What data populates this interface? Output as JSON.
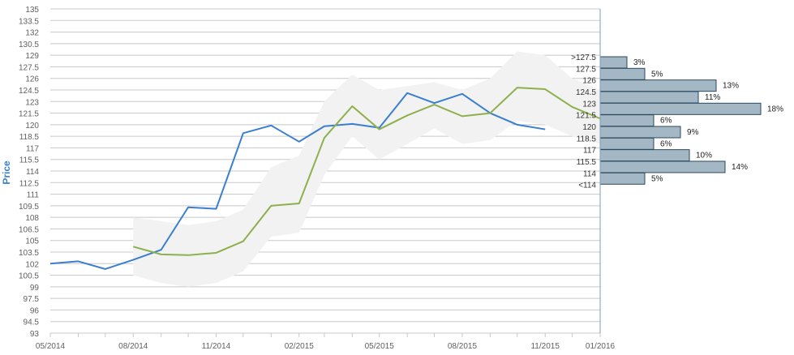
{
  "chart_data": {
    "type": "line",
    "ylabel": "Price",
    "ylim": [
      93,
      135
    ],
    "yticks": [
      "93",
      "94.5",
      "96",
      "97.5",
      "99",
      "100.5",
      "102",
      "103.5",
      "105",
      "106.5",
      "108",
      "109.5",
      "111",
      "112.5",
      "114",
      "115.5",
      "117",
      "118.5",
      "120",
      "121.5",
      "123",
      "124.5",
      "126",
      "127.5",
      "129",
      "130.5",
      "132",
      "133.5",
      "135"
    ],
    "xticks": [
      "05/2014",
      "08/2014",
      "11/2014",
      "02/2015",
      "05/2015",
      "08/2015",
      "11/2015",
      "01/2016"
    ],
    "x_tick_dates": [
      "2014-05-01",
      "2014-08-01",
      "2014-11-01",
      "2015-02-01",
      "2015-05-01",
      "2015-08-01",
      "2015-11-01",
      "2016-01-01"
    ],
    "x_range": [
      "2014-05-01",
      "2016-01-01"
    ],
    "grid": true,
    "colors": {
      "actual": "#3a7fcf",
      "forecast": "#8db04d",
      "band": "#f2f2f2",
      "hist_fill": "#a3b7c4",
      "hist_stroke": "#2b4a5e",
      "axis": "#7d9fb5"
    },
    "series": [
      {
        "values": [
          [
            "2014-05-01",
            102.0
          ],
          [
            "2014-06-01",
            102.3
          ],
          [
            "2014-07-01",
            101.3
          ],
          [
            "2014-08-01",
            102.5
          ],
          [
            "2014-09-01",
            103.8
          ],
          [
            "2014-10-01",
            109.3
          ],
          [
            "2014-11-01",
            109.1
          ],
          [
            "2014-12-01",
            118.9
          ],
          [
            "2015-01-01",
            119.9
          ],
          [
            "2015-02-01",
            117.8
          ],
          [
            "2015-03-01",
            119.8
          ],
          [
            "2015-04-01",
            120.1
          ],
          [
            "2015-05-01",
            119.6
          ],
          [
            "2015-06-01",
            124.1
          ],
          [
            "2015-07-01",
            122.8
          ],
          [
            "2015-08-01",
            124.0
          ],
          [
            "2015-09-01",
            121.5
          ],
          [
            "2015-10-01",
            120.0
          ],
          [
            "2015-11-01",
            119.4
          ]
        ]
      },
      {
        "values": [
          [
            "2014-08-01",
            104.2
          ],
          [
            "2014-09-01",
            103.2
          ],
          [
            "2014-10-01",
            103.1
          ],
          [
            "2014-11-01",
            103.4
          ],
          [
            "2014-12-01",
            104.9
          ],
          [
            "2015-01-01",
            109.5
          ],
          [
            "2015-02-01",
            109.8
          ],
          [
            "2015-03-01",
            118.3
          ],
          [
            "2015-04-01",
            122.4
          ],
          [
            "2015-05-01",
            119.4
          ],
          [
            "2015-06-01",
            121.2
          ],
          [
            "2015-07-01",
            122.6
          ],
          [
            "2015-08-01",
            121.1
          ],
          [
            "2015-09-01",
            121.5
          ],
          [
            "2015-10-01",
            124.8
          ],
          [
            "2015-11-01",
            124.6
          ],
          [
            "2015-12-01",
            122.3
          ],
          [
            "2016-01-01",
            120.8
          ]
        ],
        "band_upper": [
          108.0,
          107.5,
          107.0,
          107.5,
          109.0,
          114.5,
          116.0,
          123.0,
          126.5,
          124.5,
          125.0,
          125.5,
          124.5,
          126.0,
          129.5,
          129.0,
          126.0,
          124.5
        ],
        "band_lower": [
          100.5,
          99.5,
          99.0,
          99.5,
          101.0,
          105.5,
          106.0,
          113.5,
          118.5,
          115.5,
          117.5,
          119.5,
          117.5,
          118.0,
          120.5,
          120.0,
          118.5,
          117.5
        ]
      }
    ],
    "histogram": {
      "categories": [
        ">127.5",
        "127.5",
        "126",
        "124.5",
        "123",
        "121.5",
        "120",
        "118.5",
        "117",
        "115.5",
        "114",
        "<114"
      ],
      "values": [
        3,
        5,
        13,
        11,
        18,
        6,
        9,
        6,
        10,
        14,
        5
      ],
      "labels": [
        "3%",
        "5%",
        "13%",
        "11%",
        "18%",
        "6%",
        "9%",
        "6%",
        "10%",
        "14%",
        "5%"
      ]
    }
  }
}
